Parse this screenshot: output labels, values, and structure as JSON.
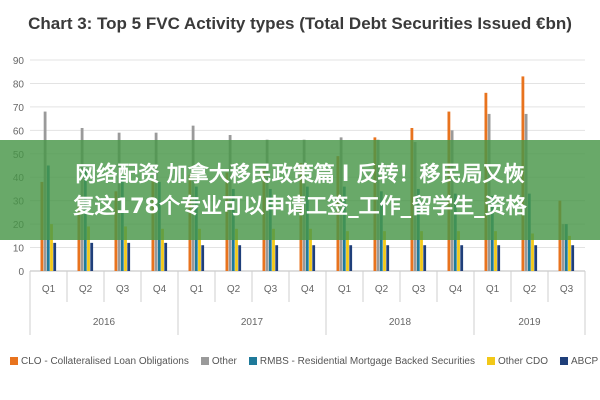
{
  "chart_data": {
    "type": "bar",
    "title": "Chart 3: Top 5 FVC Activity types (Total Debt Securities Issued €bn)",
    "ylim": [
      0,
      90
    ],
    "yticks": [
      "0",
      "10",
      "20",
      "30",
      "40",
      "50",
      "60",
      "70",
      "80",
      "90"
    ],
    "grid": true,
    "legend_position": "bottom",
    "categories": [
      "Q1",
      "Q2",
      "Q3",
      "Q4",
      "Q1",
      "Q2",
      "Q3",
      "Q4",
      "Q1",
      "Q2",
      "Q3",
      "Q4",
      "Q1",
      "Q2",
      "Q3"
    ],
    "groups": [
      {
        "label": "2016",
        "count": 4
      },
      {
        "label": "2017",
        "count": 4
      },
      {
        "label": "2018",
        "count": 4
      },
      {
        "label": "2019",
        "count": 3
      }
    ],
    "series": [
      {
        "name": "CLO - Collateralised Loan Obligations",
        "color": "#e8731e",
        "values": [
          38,
          31,
          34,
          39,
          41,
          42,
          44,
          46,
          49,
          57,
          61,
          68,
          76,
          83,
          30
        ]
      },
      {
        "name": "Other",
        "color": "#9a9a9a",
        "values": [
          68,
          61,
          59,
          59,
          62,
          58,
          56,
          56,
          57,
          56,
          55,
          60,
          67,
          67,
          20
        ]
      },
      {
        "name": "RMBS - Residential Mortgage Backed Securities",
        "color": "#1f7a9a",
        "values": [
          45,
          44,
          40,
          38,
          36,
          35,
          35,
          36,
          36,
          34,
          35,
          33,
          32,
          33,
          20
        ]
      },
      {
        "name": "Other CDO",
        "color": "#f2c818",
        "values": [
          20,
          19,
          19,
          18,
          18,
          18,
          18,
          18,
          17,
          17,
          17,
          17,
          17,
          16,
          15
        ]
      },
      {
        "name": "ABCP",
        "color": "#1f3f7a",
        "values": [
          12,
          12,
          12,
          12,
          11,
          11,
          11,
          11,
          11,
          11,
          11,
          11,
          11,
          11,
          11
        ]
      }
    ]
  },
  "overlay": {
    "line1": "网络配资 加拿大移民政策篇 l 反转！移民局又恢",
    "line2": "复这178个专业可以申请工签_工作_留学生_资格"
  }
}
